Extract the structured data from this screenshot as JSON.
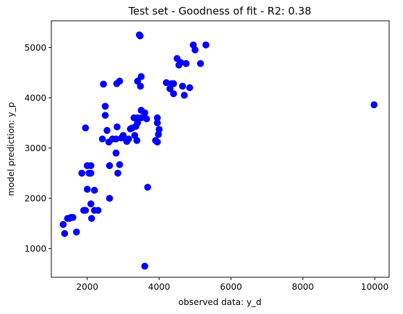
{
  "chart_data": {
    "type": "scatter",
    "title": "Test set - Goodness of fit -  R2: 0.38",
    "xlabel": "observed data: y_d",
    "ylabel": "model prediction: y_p",
    "xlim": [
      1000,
      10400
    ],
    "ylim": [
      430,
      5530
    ],
    "xticks": [
      2000,
      4000,
      6000,
      8000,
      10000
    ],
    "yticks": [
      1000,
      2000,
      3000,
      4000,
      5000
    ],
    "grid": false,
    "marker_color": "#0000ff",
    "series": [
      {
        "points": [
          [
            1330,
            1480
          ],
          [
            1370,
            1300
          ],
          [
            1450,
            1600
          ],
          [
            1500,
            1600
          ],
          [
            1550,
            1620
          ],
          [
            1600,
            1620
          ],
          [
            1700,
            1330
          ],
          [
            1850,
            2500
          ],
          [
            1900,
            1760
          ],
          [
            1950,
            1760
          ],
          [
            1950,
            3400
          ],
          [
            2000,
            2650
          ],
          [
            2000,
            2180
          ],
          [
            2050,
            2500
          ],
          [
            2100,
            2650
          ],
          [
            2100,
            2500
          ],
          [
            2100,
            1890
          ],
          [
            2120,
            1600
          ],
          [
            2200,
            2160
          ],
          [
            2200,
            1760
          ],
          [
            2300,
            1760
          ],
          [
            2420,
            3180
          ],
          [
            2450,
            4270
          ],
          [
            2500,
            3830
          ],
          [
            2500,
            3650
          ],
          [
            2550,
            3350
          ],
          [
            2600,
            3120
          ],
          [
            2620,
            2650
          ],
          [
            2620,
            2000
          ],
          [
            2700,
            3180
          ],
          [
            2800,
            3180
          ],
          [
            2800,
            2900
          ],
          [
            2820,
            4280
          ],
          [
            2830,
            3420
          ],
          [
            2850,
            2500
          ],
          [
            2900,
            4330
          ],
          [
            2900,
            2670
          ],
          [
            2950,
            3200
          ],
          [
            3000,
            3250
          ],
          [
            3100,
            3130
          ],
          [
            3150,
            3180
          ],
          [
            3200,
            3380
          ],
          [
            3250,
            3400
          ],
          [
            3300,
            3600
          ],
          [
            3320,
            3250
          ],
          [
            3350,
            3430
          ],
          [
            3380,
            3150
          ],
          [
            3400,
            3500
          ],
          [
            3400,
            4330
          ],
          [
            3400,
            3600
          ],
          [
            3450,
            5250
          ],
          [
            3470,
            5230
          ],
          [
            3480,
            4230
          ],
          [
            3500,
            4420
          ],
          [
            3500,
            3600
          ],
          [
            3500,
            3750
          ],
          [
            3600,
            3700
          ],
          [
            3600,
            650
          ],
          [
            3650,
            3580
          ],
          [
            3680,
            2220
          ],
          [
            3900,
            3150
          ],
          [
            3950,
            3120
          ],
          [
            3950,
            3600
          ],
          [
            3950,
            3500
          ],
          [
            3980,
            3270
          ],
          [
            4000,
            3370
          ],
          [
            4200,
            4300
          ],
          [
            4300,
            4180
          ],
          [
            4350,
            4280
          ],
          [
            4400,
            4280
          ],
          [
            4400,
            4080
          ],
          [
            4500,
            4780
          ],
          [
            4550,
            4650
          ],
          [
            4600,
            4700
          ],
          [
            4650,
            4230
          ],
          [
            4700,
            4050
          ],
          [
            4750,
            4680
          ],
          [
            4850,
            4200
          ],
          [
            4950,
            5050
          ],
          [
            5000,
            4950
          ],
          [
            5150,
            4680
          ],
          [
            5300,
            5050
          ],
          [
            9980,
            3860
          ]
        ]
      }
    ]
  }
}
